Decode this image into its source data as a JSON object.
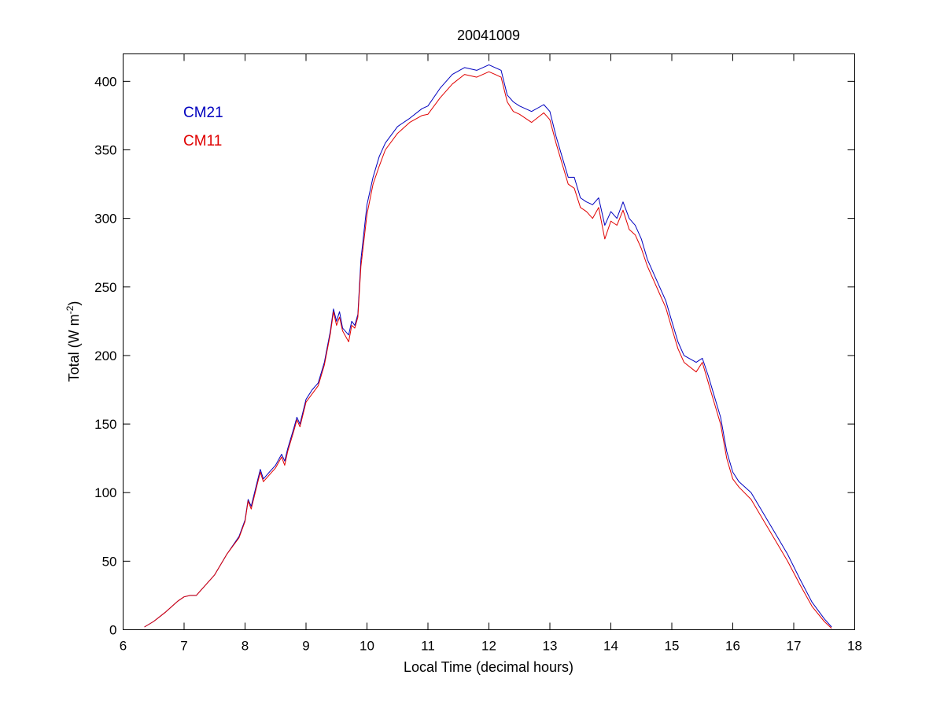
{
  "chart_data": {
    "type": "line",
    "title": "20041009",
    "xlabel": "Local Time (decimal hours)",
    "ylabel_main": "Total (W m",
    "ylabel_sup": "-2",
    "ylabel_close": ")",
    "xlim": [
      6,
      18
    ],
    "ylim": [
      0,
      420
    ],
    "xticks": [
      6,
      7,
      8,
      9,
      10,
      11,
      12,
      13,
      14,
      15,
      16,
      17,
      18
    ],
    "yticks": [
      0,
      50,
      100,
      150,
      200,
      250,
      300,
      350,
      400
    ],
    "grid": false,
    "legend_position": "top-left",
    "colors": {
      "CM21": "#0000bf",
      "CM11": "#e00000"
    },
    "series": [
      {
        "name": "CM21",
        "x": [
          6.35,
          6.5,
          6.7,
          6.9,
          7.0,
          7.1,
          7.2,
          7.3,
          7.5,
          7.7,
          7.9,
          8.0,
          8.05,
          8.1,
          8.2,
          8.25,
          8.3,
          8.4,
          8.5,
          8.6,
          8.65,
          8.7,
          8.8,
          8.85,
          8.9,
          9.0,
          9.1,
          9.2,
          9.3,
          9.4,
          9.45,
          9.5,
          9.55,
          9.6,
          9.7,
          9.75,
          9.8,
          9.85,
          9.9,
          10.0,
          10.1,
          10.2,
          10.3,
          10.5,
          10.7,
          10.9,
          11.0,
          11.2,
          11.4,
          11.6,
          11.8,
          12.0,
          12.1,
          12.2,
          12.3,
          12.4,
          12.5,
          12.7,
          12.9,
          13.0,
          13.1,
          13.2,
          13.3,
          13.4,
          13.5,
          13.6,
          13.7,
          13.8,
          13.9,
          14.0,
          14.1,
          14.2,
          14.3,
          14.4,
          14.5,
          14.6,
          14.7,
          14.8,
          14.9,
          15.0,
          15.1,
          15.2,
          15.4,
          15.5,
          15.6,
          15.7,
          15.8,
          15.9,
          16.0,
          16.1,
          16.3,
          16.5,
          16.7,
          16.9,
          17.1,
          17.3,
          17.5,
          17.62
        ],
        "y": [
          2,
          6,
          13,
          21,
          24,
          25,
          25,
          30,
          40,
          55,
          68,
          80,
          95,
          90,
          108,
          117,
          110,
          115,
          120,
          128,
          123,
          132,
          147,
          155,
          150,
          168,
          175,
          180,
          195,
          218,
          234,
          225,
          232,
          220,
          215,
          225,
          222,
          230,
          270,
          310,
          330,
          345,
          355,
          367,
          373,
          380,
          382,
          395,
          405,
          410,
          408,
          412,
          410,
          408,
          390,
          385,
          382,
          378,
          383,
          378,
          360,
          345,
          330,
          330,
          315,
          312,
          310,
          315,
          295,
          305,
          300,
          312,
          300,
          295,
          285,
          270,
          260,
          250,
          240,
          225,
          210,
          200,
          195,
          198,
          185,
          170,
          155,
          130,
          115,
          108,
          100,
          85,
          70,
          55,
          37,
          20,
          8,
          2
        ]
      },
      {
        "name": "CM11",
        "x": [
          6.35,
          6.5,
          6.7,
          6.9,
          7.0,
          7.1,
          7.2,
          7.3,
          7.5,
          7.7,
          7.9,
          8.0,
          8.05,
          8.1,
          8.2,
          8.25,
          8.3,
          8.4,
          8.5,
          8.6,
          8.65,
          8.7,
          8.8,
          8.85,
          8.9,
          9.0,
          9.1,
          9.2,
          9.3,
          9.4,
          9.45,
          9.5,
          9.55,
          9.6,
          9.7,
          9.75,
          9.8,
          9.85,
          9.9,
          10.0,
          10.1,
          10.2,
          10.3,
          10.5,
          10.7,
          10.9,
          11.0,
          11.2,
          11.4,
          11.6,
          11.8,
          12.0,
          12.1,
          12.2,
          12.3,
          12.4,
          12.5,
          12.7,
          12.9,
          13.0,
          13.1,
          13.2,
          13.3,
          13.4,
          13.5,
          13.6,
          13.7,
          13.8,
          13.9,
          14.0,
          14.1,
          14.2,
          14.3,
          14.4,
          14.5,
          14.6,
          14.7,
          14.8,
          14.9,
          15.0,
          15.1,
          15.2,
          15.4,
          15.5,
          15.6,
          15.7,
          15.8,
          15.9,
          16.0,
          16.1,
          16.3,
          16.5,
          16.7,
          16.9,
          17.1,
          17.3,
          17.5,
          17.62
        ],
        "y": [
          2,
          6,
          13,
          21,
          24,
          25,
          25,
          30,
          40,
          55,
          67,
          79,
          94,
          88,
          106,
          115,
          108,
          113,
          118,
          126,
          120,
          130,
          145,
          153,
          148,
          166,
          172,
          178,
          193,
          216,
          232,
          222,
          228,
          218,
          210,
          222,
          220,
          228,
          265,
          303,
          325,
          338,
          350,
          362,
          370,
          375,
          376,
          388,
          398,
          405,
          403,
          407,
          405,
          403,
          385,
          378,
          376,
          370,
          377,
          372,
          355,
          340,
          325,
          322,
          308,
          305,
          300,
          308,
          285,
          298,
          295,
          306,
          292,
          288,
          278,
          265,
          255,
          245,
          235,
          220,
          205,
          195,
          188,
          195,
          180,
          165,
          150,
          125,
          110,
          104,
          95,
          80,
          65,
          50,
          33,
          17,
          6,
          1
        ]
      }
    ]
  }
}
